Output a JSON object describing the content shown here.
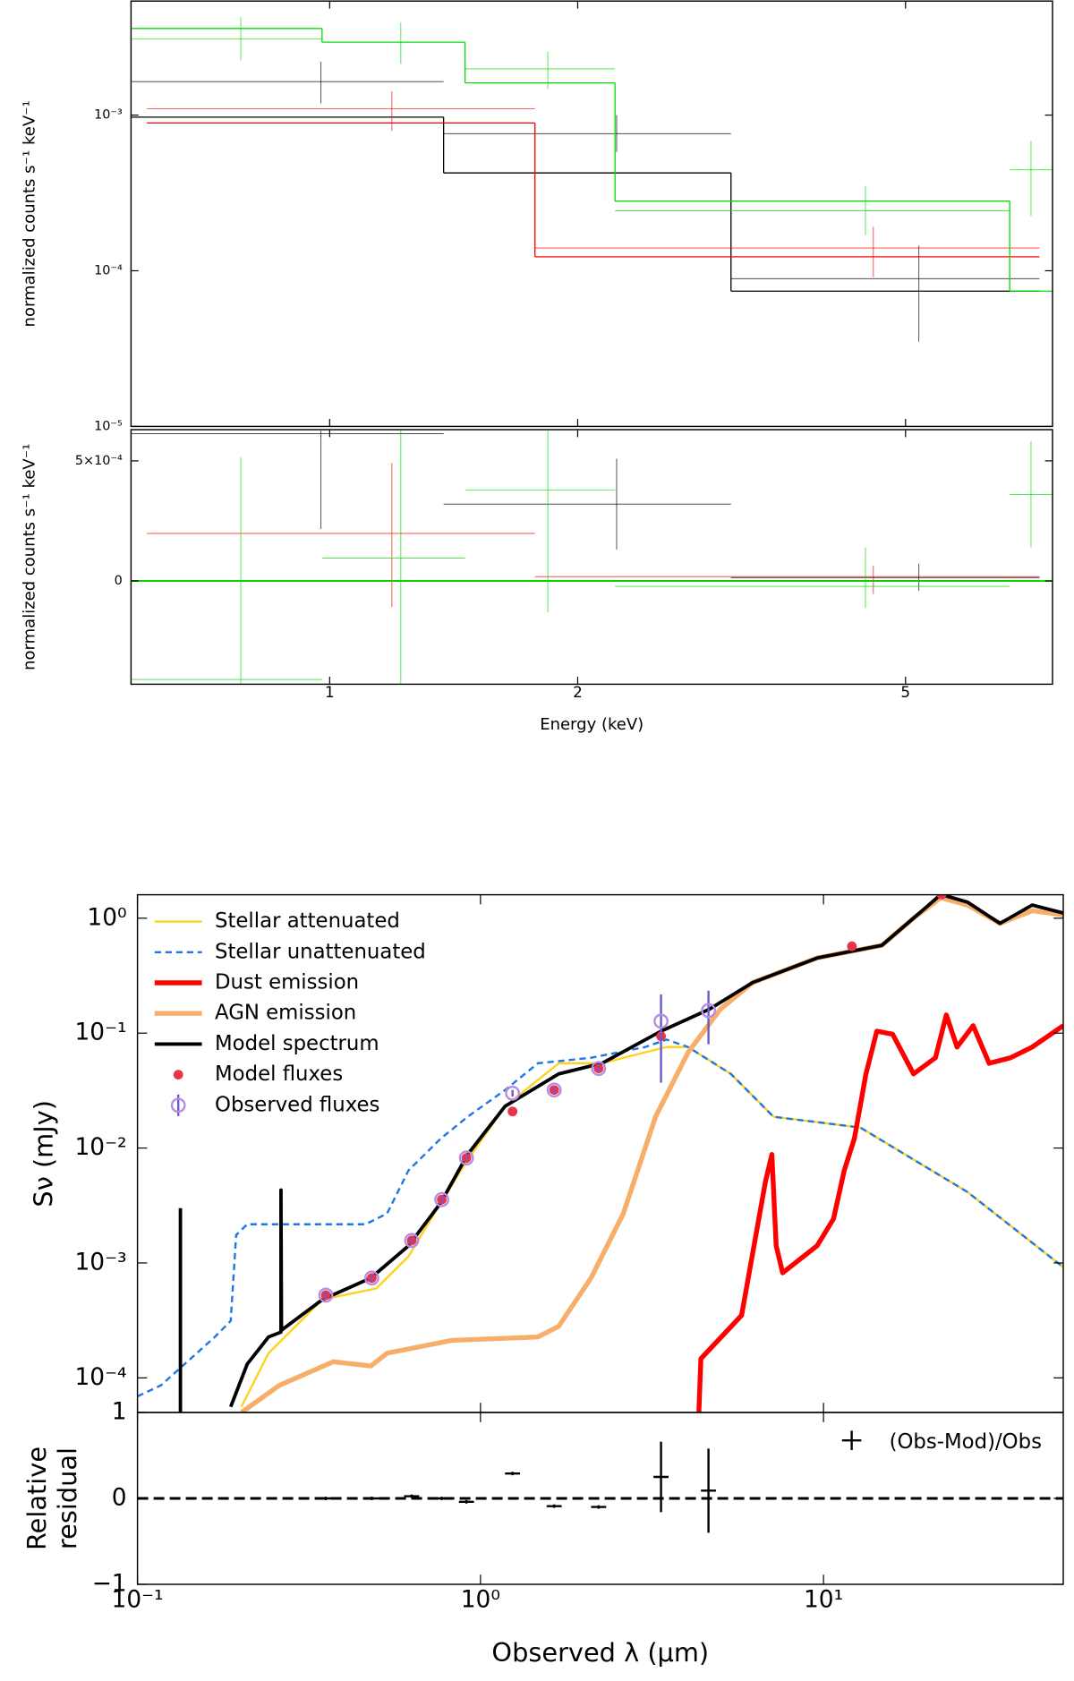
{
  "chart_data": [
    {
      "type": "step",
      "xlog": true,
      "ylog": true,
      "xlim": [
        0.574,
        7.54
      ],
      "ylim": [
        1e-05,
        0.0054
      ],
      "ylabel": "normalized counts s⁻¹ keV⁻¹",
      "yticks": [
        {
          "value": 0.001,
          "label": "10⁻³"
        },
        {
          "value": 0.0001,
          "label": "10⁻⁴"
        },
        {
          "value": 1e-05,
          "label": "10⁻⁵"
        }
      ],
      "series": [
        {
          "color": "#000000",
          "steps": {
            "edges": [
              0.574,
              1.375,
              3.07,
              7.27
            ],
            "values": [
              0.00097,
              0.000425,
              7.4e-05
            ]
          },
          "points": {
            "x": [
              0.976,
              2.23,
              5.19
            ],
            "y": [
              0.00164,
              0.00076,
              8.9e-05
            ],
            "xmin": [
              0.574,
              1.375,
              3.07
            ],
            "xmax": [
              1.375,
              3.07,
              7.27
            ],
            "ymin": [
              0.00119,
              0.00058,
              3.5e-05
            ],
            "ymax": [
              0.0022,
              0.001,
              0.000145
            ]
          }
        },
        {
          "color": "#ff0000",
          "steps": {
            "edges": [
              0.6,
              1.775,
              7.27
            ],
            "values": [
              0.00089,
              0.000123
            ]
          },
          "points": {
            "x": [
              1.19,
              4.57
            ],
            "y": [
              0.0011,
              0.00014
            ],
            "xmin": [
              0.6,
              1.775
            ],
            "xmax": [
              1.775,
              7.27
            ],
            "ymin": [
              0.00079,
              9.1e-05
            ],
            "ymax": [
              0.00142,
              0.000192
            ]
          }
        },
        {
          "color": "#00e000",
          "steps": {
            "edges": [
              0.574,
              0.979,
              1.46,
              2.22,
              6.69,
              7.54
            ],
            "values": [
              0.0036,
              0.00294,
              0.00161,
              0.00028,
              7.4e-05
            ]
          },
          "points": {
            "x": [
              0.78,
              1.22,
              1.84,
              4.47,
              7.1
            ],
            "y": [
              0.00309,
              0.00294,
              0.00198,
              0.000243,
              0.000445
            ],
            "xmin": [
              0.574,
              0.979,
              1.46,
              2.22,
              6.69
            ],
            "xmax": [
              0.979,
              1.46,
              2.22,
              6.69,
              7.54
            ],
            "ymin": [
              0.00225,
              0.00214,
              0.00147,
              0.000169,
              0.000225
            ],
            "ymax": [
              0.00425,
              0.00392,
              0.00255,
              0.000351,
              0.000683
            ]
          }
        }
      ]
    },
    {
      "type": "step",
      "xlog": true,
      "ylog": false,
      "xlim": [
        0.574,
        7.54
      ],
      "ylim": [
        -0.00043,
        0.00063
      ],
      "xlabel": "Energy (keV)",
      "ylabel": "normalized counts s⁻¹ keV⁻¹",
      "xticks": [
        1,
        2,
        5
      ],
      "yticks": [
        0,
        {
          "value": 0.0005,
          "label": "5×10⁻⁴"
        }
      ],
      "series": [
        {
          "color": "#000000",
          "steps": {
            "edges": [
              0.574,
              7.27
            ],
            "values": [
              0
            ]
          },
          "points": {
            "x": [
              0.976,
              2.23,
              5.19
            ],
            "y": [
              0.000613,
              0.00032,
              1.4e-05
            ],
            "xmin": [
              0.574,
              1.375,
              3.07
            ],
            "xmax": [
              1.375,
              3.07,
              7.27
            ],
            "ymin": [
              0.000216,
              0.000131,
              -4.1e-05
            ],
            "ymax": [
              0.000626,
              0.000509,
              7.2e-05
            ]
          }
        },
        {
          "color": "#ff0000",
          "steps": {
            "edges": [
              0.6,
              7.27
            ],
            "values": [
              0
            ]
          },
          "points": {
            "x": [
              1.19,
              4.57
            ],
            "y": [
              0.000198,
              1.8e-05
            ],
            "xmin": [
              0.6,
              1.775
            ],
            "xmax": [
              1.775,
              7.27
            ],
            "ymin": [
              -0.000108,
              -5.4e-05
            ],
            "ymax": [
              0.000491,
              6.3e-05
            ]
          }
        },
        {
          "color": "#00e000",
          "steps": {
            "edges": [
              0.574,
              7.54
            ],
            "values": [
              0
            ]
          },
          "points": {
            "x": [
              0.78,
              1.22,
              1.84,
              4.47,
              7.1
            ],
            "y": [
              -0.00041,
              9.5e-05,
              0.000378,
              -2.25e-05,
              0.00036
            ],
            "xmin": [
              0.574,
              0.979,
              1.46,
              2.22,
              6.69
            ],
            "xmax": [
              0.979,
              1.46,
              2.22,
              6.69,
              7.54
            ],
            "ymin": [
              -0.000432,
              -0.000432,
              -0.000131,
              -0.000113,
              0.00014
            ],
            "ymax": [
              0.000514,
              0.000626,
              0.000626,
              0.00014,
              0.000581
            ]
          }
        }
      ]
    },
    {
      "type": "line",
      "xlog": true,
      "ylog": true,
      "xlim": [
        0.1,
        50
      ],
      "ylim": [
        5e-05,
        1.6
      ],
      "ylabel": "Sν (mJy)",
      "legend": "upper left",
      "yticks": [
        {
          "value": 1,
          "label": "10⁰"
        },
        {
          "value": 0.1,
          "label": "10⁻¹"
        },
        {
          "value": 0.01,
          "label": "10⁻²"
        },
        {
          "value": 0.001,
          "label": "10⁻³"
        },
        {
          "value": 0.0001,
          "label": "10⁻⁴"
        }
      ],
      "series": [
        {
          "name": "Stellar attenuated",
          "kind": "line",
          "color": "#ffd21f",
          "x": [
            0.201,
            0.241,
            0.346,
            0.497,
            0.617,
            0.766,
            0.917,
            1.18,
            1.69,
            2.26,
            3.02,
            3.49,
            4.03,
            5.37,
            7.15,
            12.8,
            26.3,
            50
          ],
          "values": [
            5.6e-05,
            0.000164,
            0.00048,
            0.0006,
            0.00114,
            0.00334,
            0.0079,
            0.0231,
            0.0547,
            0.0547,
            0.068,
            0.0757,
            0.0757,
            0.0442,
            0.0187,
            0.0151,
            0.00414,
            0.00092
          ]
        },
        {
          "name": "Stellar unattenuated",
          "kind": "line",
          "dash": true,
          "color": "#1f77e4",
          "x": [
            0.1,
            0.117,
            0.168,
            0.187,
            0.194,
            0.209,
            0.462,
            0.534,
            0.617,
            0.766,
            0.917,
            1.18,
            1.47,
            2.1,
            3.02,
            3.49,
            4.03,
            5.37,
            7.15,
            12.8,
            26.3,
            50
          ],
          "values": [
            6.9e-05,
            8.6e-05,
            0.000227,
            0.000313,
            0.00175,
            0.00217,
            0.00217,
            0.00269,
            0.0064,
            0.0121,
            0.0187,
            0.032,
            0.0547,
            0.061,
            0.0757,
            0.088,
            0.0757,
            0.0442,
            0.0187,
            0.0151,
            0.00414,
            0.00092
          ]
        },
        {
          "name": "Dust emission",
          "kind": "line",
          "color": "#ff0000",
          "x": [
            4.33,
            4.39,
            5.77,
            6.77,
            7.07,
            7.28,
            7.6,
            9.58,
            10.7,
            11.5,
            12.3,
            13.3,
            14.3,
            15.9,
            18.3,
            21.2,
            22.8,
            24.5,
            27.3,
            30.4,
            35.1,
            40.6,
            50
          ],
          "values": [
            5e-05,
            0.000147,
            0.00035,
            0.0051,
            0.0088,
            0.00141,
            0.00082,
            0.00141,
            0.00242,
            0.0064,
            0.0121,
            0.0442,
            0.104,
            0.098,
            0.0442,
            0.061,
            0.144,
            0.0757,
            0.116,
            0.0547,
            0.061,
            0.0757,
            0.116
          ]
        },
        {
          "name": "AGN emission",
          "kind": "line",
          "color": "#f7ae6b",
          "x": [
            0.201,
            0.259,
            0.372,
            0.479,
            0.534,
            0.823,
            1.47,
            1.69,
            2.1,
            2.61,
            3.24,
            4.03,
            5.0,
            6.21,
            9.58,
            14.8,
            18.3,
            22.0,
            26.3,
            32.7,
            40.6,
            50
          ],
          "values": [
            5e-05,
            8.6e-05,
            0.000138,
            0.000127,
            0.000164,
            0.000212,
            0.000227,
            0.000281,
            0.00074,
            0.00269,
            0.0187,
            0.068,
            0.161,
            0.275,
            0.45,
            0.58,
            1.0,
            1.51,
            1.3,
            0.9,
            1.16,
            1.07
          ]
        },
        {
          "name": "Model spectrum",
          "kind": "line",
          "color": "#000000",
          "x": [
            0.1334,
            0.1334,
            null,
            0.187,
            0.209,
            0.241,
            0.262,
            0.262,
            0.263,
            0.346,
            0.479,
            0.617,
            0.766,
            0.917,
            1.18,
            1.69,
            2.26,
            3.36,
            4.64,
            6.21,
            9.58,
            14.8,
            18.3,
            22.0,
            26.3,
            32.7,
            40.6,
            50
          ],
          "values": [
            5e-05,
            0.003,
            null,
            5.6e-05,
            0.000132,
            0.000227,
            0.00025,
            0.0043,
            0.00026,
            0.00048,
            0.00074,
            0.00141,
            0.00334,
            0.0088,
            0.0231,
            0.0442,
            0.0547,
            0.104,
            0.161,
            0.275,
            0.45,
            0.58,
            1.0,
            1.61,
            1.38,
            0.9,
            1.3,
            1.11
          ]
        },
        {
          "name": "Model fluxes",
          "kind": "scatter",
          "color": "#e8334a",
          "x": [
            0.354,
            0.482,
            0.63,
            0.771,
            0.91,
            1.24,
            1.64,
            2.21,
            3.36,
            12.1,
            22.1
          ],
          "values": [
            0.000525,
            0.00074,
            0.00157,
            0.00356,
            0.0082,
            0.0208,
            0.032,
            0.0492,
            0.094,
            0.57,
            1.61
          ]
        },
        {
          "name": "Observed fluxes",
          "kind": "errorbar",
          "color": "#b48ce6",
          "x": [
            0.354,
            0.482,
            0.63,
            0.771,
            0.91,
            1.24,
            1.64,
            2.21,
            3.36,
            4.62
          ],
          "values": [
            0.000525,
            0.00074,
            0.00157,
            0.00356,
            0.0082,
            0.03,
            0.032,
            0.0492,
            0.127,
            0.157
          ],
          "errors": [
            3e-05,
            4e-05,
            8e-05,
            0.0002,
            0.0004,
            0.002,
            0.002,
            0.003,
            0.09,
            0.077
          ]
        }
      ]
    },
    {
      "type": "residual",
      "xlog": true,
      "ylog": false,
      "xlim": [
        0.1,
        50
      ],
      "ylim": [
        -1,
        1
      ],
      "xlabel": "Observed λ (μm)",
      "ylabel_lines": [
        "Relative",
        "residual"
      ],
      "hline": 0,
      "legend": "upper right",
      "xticks": [
        {
          "value": 0.1,
          "label": "10⁻¹"
        },
        {
          "value": 1,
          "label": "10⁰"
        },
        {
          "value": 10,
          "label": "10¹"
        }
      ],
      "yticks": [
        {
          "value": -1,
          "label": "−1"
        },
        0,
        1
      ],
      "series": [
        {
          "name": "(Obs-Mod)/Obs",
          "color": "#000000",
          "x": [
            0.354,
            0.482,
            0.63,
            0.771,
            0.91,
            1.24,
            1.64,
            2.21,
            3.36,
            4.62
          ],
          "values": [
            0,
            0,
            0.025,
            0,
            -0.04,
            0.29,
            -0.09,
            -0.1,
            0.25,
            0.09
          ],
          "errors": [
            0.02,
            0.02,
            0.02,
            0.02,
            0.02,
            0.02,
            0.02,
            0.02,
            0.41,
            0.49
          ]
        }
      ]
    }
  ]
}
